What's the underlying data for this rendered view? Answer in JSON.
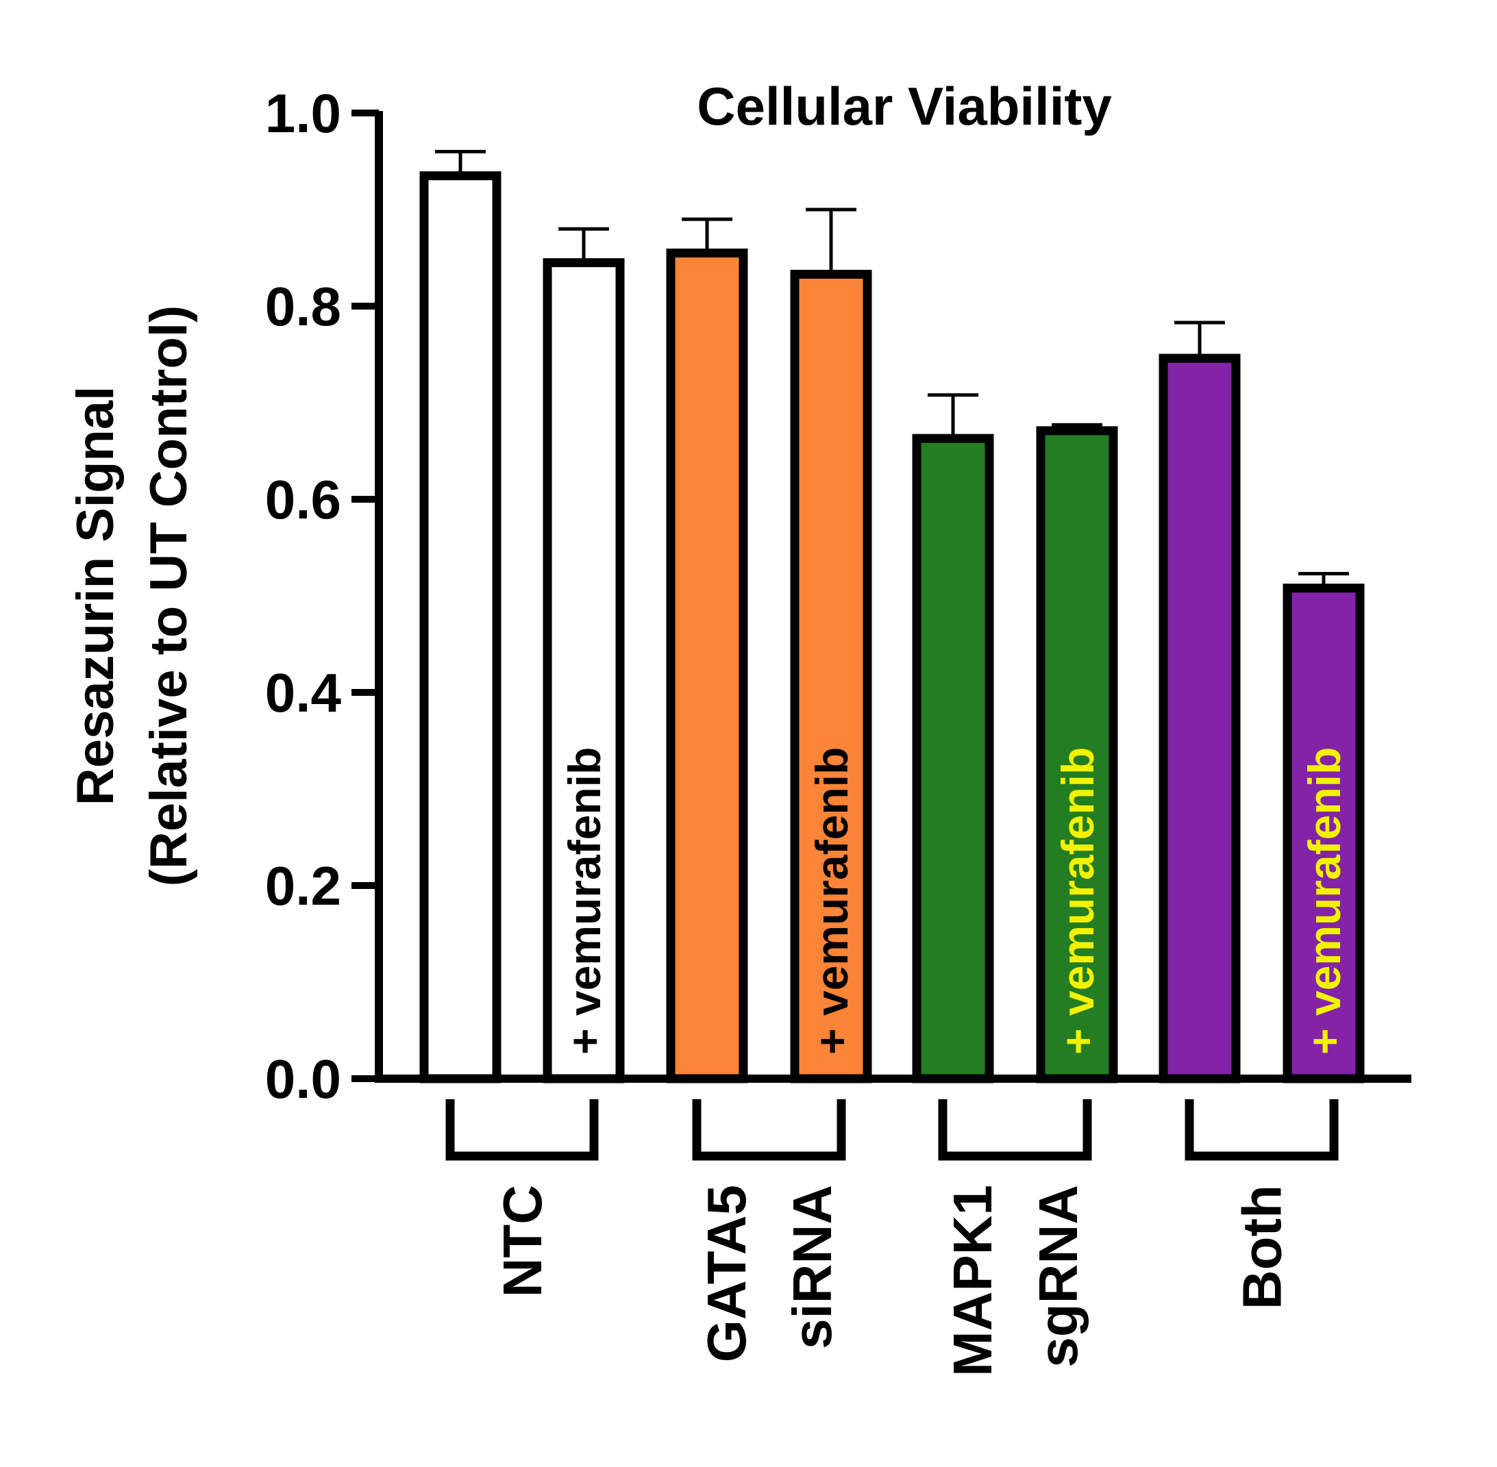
{
  "chart_data": {
    "type": "bar",
    "title": "Cellular Viability",
    "ylabel_lines": [
      "Resazurin Signal",
      "(Relative to UT Control)"
    ],
    "ylim": [
      0,
      1.0
    ],
    "yticks": [
      "0.0",
      "0.2",
      "0.4",
      "0.6",
      "0.8",
      "1.0"
    ],
    "grid": false,
    "bars": [
      {
        "group": "NTC",
        "label": "",
        "value": 0.935,
        "error": 0.025,
        "fill": "#ffffff",
        "text_color": "#000000"
      },
      {
        "group": "NTC",
        "label": "+ vemurafenib",
        "value": 0.845,
        "error": 0.035,
        "fill": "#ffffff",
        "text_color": "#000000"
      },
      {
        "group": "GATA5 siRNA",
        "label": "",
        "value": 0.855,
        "error": 0.035,
        "fill": "#fb8436",
        "text_color": "#000000"
      },
      {
        "group": "GATA5 siRNA",
        "label": "+ vemurafenib",
        "value": 0.833,
        "error": 0.067,
        "fill": "#fb8436",
        "text_color": "#000000"
      },
      {
        "group": "MAPK1 sgRNA",
        "label": "",
        "value": 0.663,
        "error": 0.045,
        "fill": "#237d22",
        "text_color": "#f2f200"
      },
      {
        "group": "MAPK1 sgRNA",
        "label": "+ vemurafenib",
        "value": 0.671,
        "error": 0.006,
        "fill": "#237d22",
        "text_color": "#f2f200"
      },
      {
        "group": "Both",
        "label": "",
        "value": 0.746,
        "error": 0.037,
        "fill": "#8223a8",
        "text_color": "#f2f200"
      },
      {
        "group": "Both",
        "label": "+ vemurafenib",
        "value": 0.508,
        "error": 0.015,
        "fill": "#8223a8",
        "text_color": "#f2f200"
      }
    ],
    "groups": [
      {
        "lines": [
          "NTC"
        ]
      },
      {
        "lines": [
          "GATA5",
          "siRNA"
        ]
      },
      {
        "lines": [
          "MAPK1",
          "sgRNA"
        ]
      },
      {
        "lines": [
          "Both"
        ]
      }
    ]
  }
}
